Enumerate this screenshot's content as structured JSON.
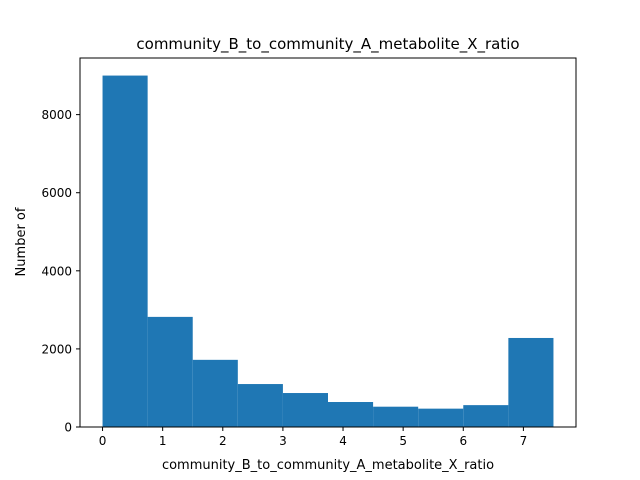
{
  "chart_data": {
    "type": "bar",
    "title": "community_B_to_community_A_metabolite_X_ratio",
    "xlabel": "community_B_to_community_A_metabolite_X_ratio",
    "ylabel": "Number of",
    "bin_edges": [
      0,
      0.75,
      1.5,
      2.25,
      3.0,
      3.75,
      4.5,
      5.25,
      6.0,
      6.75,
      7.5
    ],
    "values": [
      9000,
      2820,
      1720,
      1100,
      870,
      640,
      520,
      470,
      560,
      2280
    ],
    "xlim": [
      -0.375,
      7.875
    ],
    "ylim": [
      0,
      9450
    ],
    "xticks": [
      0,
      1,
      2,
      3,
      4,
      5,
      6,
      7
    ],
    "yticks": [
      0,
      2000,
      4000,
      6000,
      8000
    ],
    "bar_color": "#1f77b4",
    "grid": false
  }
}
